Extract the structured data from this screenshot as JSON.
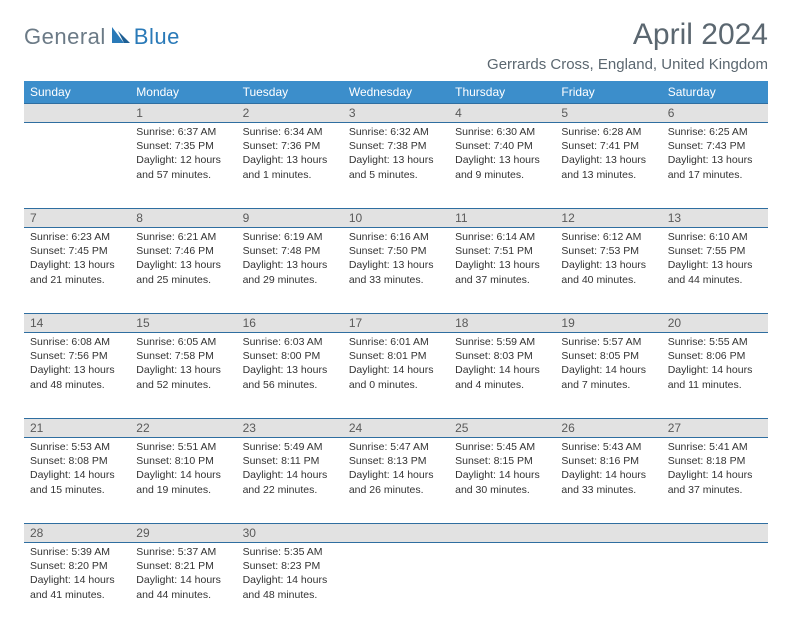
{
  "logo": {
    "general": "General",
    "blue": "Blue"
  },
  "title": "April 2024",
  "location": "Gerrards Cross, England, United Kingdom",
  "colors": {
    "header_bg": "#3c8ecb",
    "header_text": "#ffffff",
    "daynum_bg": "#e2e2e2",
    "rule": "#2f6ea0",
    "title_color": "#5b6770"
  },
  "dayHeaders": [
    "Sunday",
    "Monday",
    "Tuesday",
    "Wednesday",
    "Thursday",
    "Friday",
    "Saturday"
  ],
  "weeks": [
    [
      {
        "n": "",
        "sr": "",
        "ss": "",
        "d1": "",
        "d2": ""
      },
      {
        "n": "1",
        "sr": "Sunrise: 6:37 AM",
        "ss": "Sunset: 7:35 PM",
        "d1": "Daylight: 12 hours",
        "d2": "and 57 minutes."
      },
      {
        "n": "2",
        "sr": "Sunrise: 6:34 AM",
        "ss": "Sunset: 7:36 PM",
        "d1": "Daylight: 13 hours",
        "d2": "and 1 minutes."
      },
      {
        "n": "3",
        "sr": "Sunrise: 6:32 AM",
        "ss": "Sunset: 7:38 PM",
        "d1": "Daylight: 13 hours",
        "d2": "and 5 minutes."
      },
      {
        "n": "4",
        "sr": "Sunrise: 6:30 AM",
        "ss": "Sunset: 7:40 PM",
        "d1": "Daylight: 13 hours",
        "d2": "and 9 minutes."
      },
      {
        "n": "5",
        "sr": "Sunrise: 6:28 AM",
        "ss": "Sunset: 7:41 PM",
        "d1": "Daylight: 13 hours",
        "d2": "and 13 minutes."
      },
      {
        "n": "6",
        "sr": "Sunrise: 6:25 AM",
        "ss": "Sunset: 7:43 PM",
        "d1": "Daylight: 13 hours",
        "d2": "and 17 minutes."
      }
    ],
    [
      {
        "n": "7",
        "sr": "Sunrise: 6:23 AM",
        "ss": "Sunset: 7:45 PM",
        "d1": "Daylight: 13 hours",
        "d2": "and 21 minutes."
      },
      {
        "n": "8",
        "sr": "Sunrise: 6:21 AM",
        "ss": "Sunset: 7:46 PM",
        "d1": "Daylight: 13 hours",
        "d2": "and 25 minutes."
      },
      {
        "n": "9",
        "sr": "Sunrise: 6:19 AM",
        "ss": "Sunset: 7:48 PM",
        "d1": "Daylight: 13 hours",
        "d2": "and 29 minutes."
      },
      {
        "n": "10",
        "sr": "Sunrise: 6:16 AM",
        "ss": "Sunset: 7:50 PM",
        "d1": "Daylight: 13 hours",
        "d2": "and 33 minutes."
      },
      {
        "n": "11",
        "sr": "Sunrise: 6:14 AM",
        "ss": "Sunset: 7:51 PM",
        "d1": "Daylight: 13 hours",
        "d2": "and 37 minutes."
      },
      {
        "n": "12",
        "sr": "Sunrise: 6:12 AM",
        "ss": "Sunset: 7:53 PM",
        "d1": "Daylight: 13 hours",
        "d2": "and 40 minutes."
      },
      {
        "n": "13",
        "sr": "Sunrise: 6:10 AM",
        "ss": "Sunset: 7:55 PM",
        "d1": "Daylight: 13 hours",
        "d2": "and 44 minutes."
      }
    ],
    [
      {
        "n": "14",
        "sr": "Sunrise: 6:08 AM",
        "ss": "Sunset: 7:56 PM",
        "d1": "Daylight: 13 hours",
        "d2": "and 48 minutes."
      },
      {
        "n": "15",
        "sr": "Sunrise: 6:05 AM",
        "ss": "Sunset: 7:58 PM",
        "d1": "Daylight: 13 hours",
        "d2": "and 52 minutes."
      },
      {
        "n": "16",
        "sr": "Sunrise: 6:03 AM",
        "ss": "Sunset: 8:00 PM",
        "d1": "Daylight: 13 hours",
        "d2": "and 56 minutes."
      },
      {
        "n": "17",
        "sr": "Sunrise: 6:01 AM",
        "ss": "Sunset: 8:01 PM",
        "d1": "Daylight: 14 hours",
        "d2": "and 0 minutes."
      },
      {
        "n": "18",
        "sr": "Sunrise: 5:59 AM",
        "ss": "Sunset: 8:03 PM",
        "d1": "Daylight: 14 hours",
        "d2": "and 4 minutes."
      },
      {
        "n": "19",
        "sr": "Sunrise: 5:57 AM",
        "ss": "Sunset: 8:05 PM",
        "d1": "Daylight: 14 hours",
        "d2": "and 7 minutes."
      },
      {
        "n": "20",
        "sr": "Sunrise: 5:55 AM",
        "ss": "Sunset: 8:06 PM",
        "d1": "Daylight: 14 hours",
        "d2": "and 11 minutes."
      }
    ],
    [
      {
        "n": "21",
        "sr": "Sunrise: 5:53 AM",
        "ss": "Sunset: 8:08 PM",
        "d1": "Daylight: 14 hours",
        "d2": "and 15 minutes."
      },
      {
        "n": "22",
        "sr": "Sunrise: 5:51 AM",
        "ss": "Sunset: 8:10 PM",
        "d1": "Daylight: 14 hours",
        "d2": "and 19 minutes."
      },
      {
        "n": "23",
        "sr": "Sunrise: 5:49 AM",
        "ss": "Sunset: 8:11 PM",
        "d1": "Daylight: 14 hours",
        "d2": "and 22 minutes."
      },
      {
        "n": "24",
        "sr": "Sunrise: 5:47 AM",
        "ss": "Sunset: 8:13 PM",
        "d1": "Daylight: 14 hours",
        "d2": "and 26 minutes."
      },
      {
        "n": "25",
        "sr": "Sunrise: 5:45 AM",
        "ss": "Sunset: 8:15 PM",
        "d1": "Daylight: 14 hours",
        "d2": "and 30 minutes."
      },
      {
        "n": "26",
        "sr": "Sunrise: 5:43 AM",
        "ss": "Sunset: 8:16 PM",
        "d1": "Daylight: 14 hours",
        "d2": "and 33 minutes."
      },
      {
        "n": "27",
        "sr": "Sunrise: 5:41 AM",
        "ss": "Sunset: 8:18 PM",
        "d1": "Daylight: 14 hours",
        "d2": "and 37 minutes."
      }
    ],
    [
      {
        "n": "28",
        "sr": "Sunrise: 5:39 AM",
        "ss": "Sunset: 8:20 PM",
        "d1": "Daylight: 14 hours",
        "d2": "and 41 minutes."
      },
      {
        "n": "29",
        "sr": "Sunrise: 5:37 AM",
        "ss": "Sunset: 8:21 PM",
        "d1": "Daylight: 14 hours",
        "d2": "and 44 minutes."
      },
      {
        "n": "30",
        "sr": "Sunrise: 5:35 AM",
        "ss": "Sunset: 8:23 PM",
        "d1": "Daylight: 14 hours",
        "d2": "and 48 minutes."
      },
      {
        "n": "",
        "sr": "",
        "ss": "",
        "d1": "",
        "d2": ""
      },
      {
        "n": "",
        "sr": "",
        "ss": "",
        "d1": "",
        "d2": ""
      },
      {
        "n": "",
        "sr": "",
        "ss": "",
        "d1": "",
        "d2": ""
      },
      {
        "n": "",
        "sr": "",
        "ss": "",
        "d1": "",
        "d2": ""
      }
    ]
  ]
}
